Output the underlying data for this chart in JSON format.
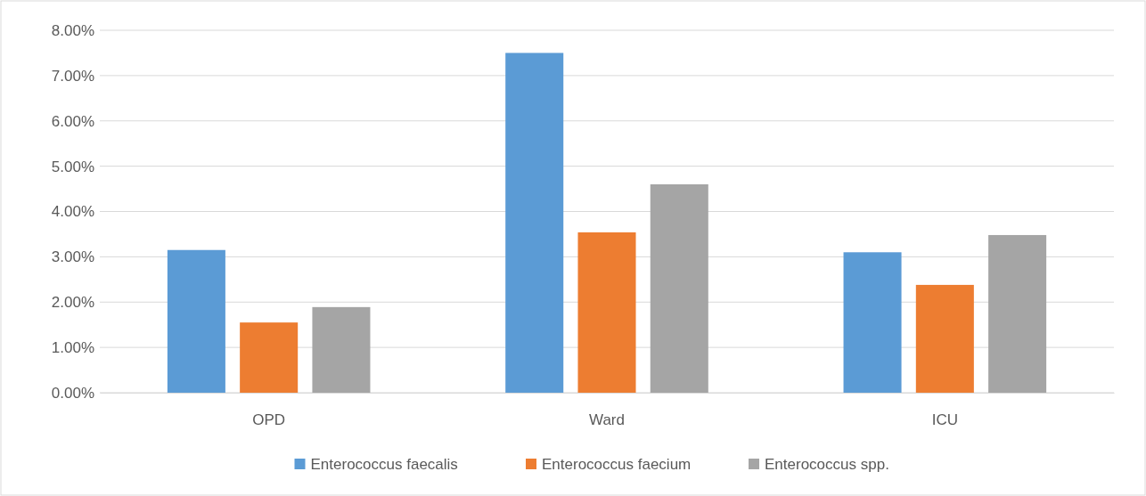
{
  "chart_data": {
    "type": "bar",
    "categories": [
      "OPD",
      "Ward",
      "ICU"
    ],
    "series": [
      {
        "name": "Enterococcus faecalis",
        "color": "#5b9bd5",
        "values": [
          3.15,
          7.5,
          3.1
        ]
      },
      {
        "name": "Enterococcus faecium",
        "color": "#ed7d31",
        "values": [
          1.55,
          3.54,
          2.38
        ]
      },
      {
        "name": "Enterococcus spp.",
        "color": "#a5a5a5",
        "values": [
          1.89,
          4.6,
          3.48
        ]
      }
    ],
    "ylim": [
      0,
      8
    ],
    "yticks": [
      {
        "value": 0,
        "label": "0.00%"
      },
      {
        "value": 1,
        "label": "1.00%"
      },
      {
        "value": 2,
        "label": "2.00%"
      },
      {
        "value": 3,
        "label": "3.00%"
      },
      {
        "value": 4,
        "label": "4.00%"
      },
      {
        "value": 5,
        "label": "5.00%"
      },
      {
        "value": 6,
        "label": "6.00%"
      },
      {
        "value": 7,
        "label": "7.00%"
      },
      {
        "value": 8,
        "label": "8.00%"
      }
    ],
    "grid": "y",
    "legend": "bottom"
  }
}
